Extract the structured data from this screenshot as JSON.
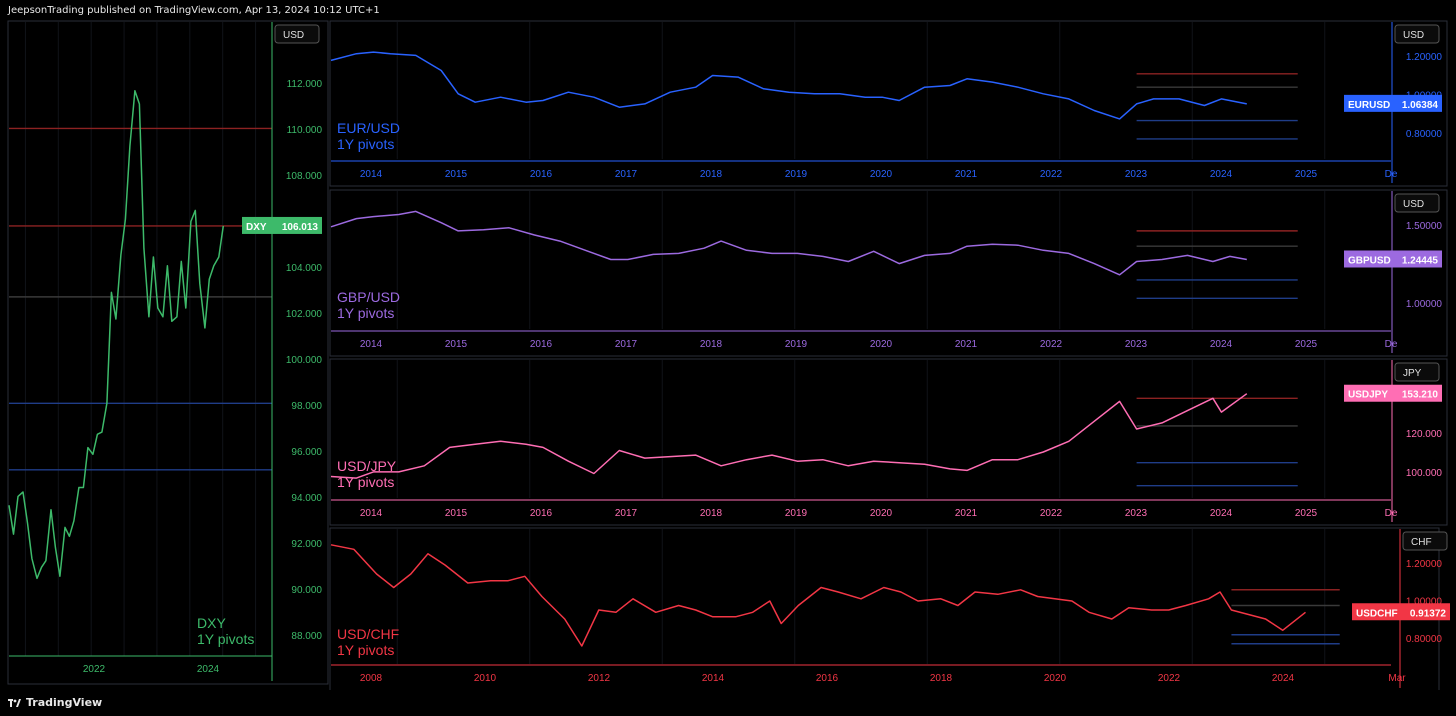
{
  "header": {
    "publisher_line": "JeepsonTrading published on TradingView.com, Apr 13, 2024 10:12 UTC+1"
  },
  "footer": {
    "brand": "TradingView"
  },
  "chart_data": [
    {
      "type": "line",
      "symbol": "DXY",
      "label_lines": [
        "DXY",
        "1Y pivots"
      ],
      "currency": "USD",
      "color": "#3dba6a",
      "last_value_label": "106.013",
      "y_ticks": [
        "112.000",
        "110.000",
        "108.000",
        "106.000",
        "104.000",
        "102.000",
        "100.000",
        "98.000",
        "96.000",
        "94.000",
        "92.000",
        "90.000",
        "88.000"
      ],
      "x_ticks": [
        "2022",
        "2024"
      ],
      "ylim": [
        86.6,
        115.2
      ],
      "xlim": [
        2020.5,
        2025.2
      ],
      "values": [
        [
          2020.5,
          93.4
        ],
        [
          2020.58,
          92.1
        ],
        [
          2020.66,
          93.8
        ],
        [
          2020.75,
          94.0
        ],
        [
          2020.83,
          92.6
        ],
        [
          2020.91,
          91.0
        ],
        [
          2021.0,
          90.1
        ],
        [
          2021.08,
          90.6
        ],
        [
          2021.16,
          90.9
        ],
        [
          2021.25,
          93.2
        ],
        [
          2021.33,
          91.5
        ],
        [
          2021.41,
          90.2
        ],
        [
          2021.5,
          92.4
        ],
        [
          2021.58,
          92.0
        ],
        [
          2021.66,
          92.7
        ],
        [
          2021.75,
          94.2
        ],
        [
          2021.83,
          94.2
        ],
        [
          2021.91,
          96.0
        ],
        [
          2022.0,
          95.7
        ],
        [
          2022.08,
          96.6
        ],
        [
          2022.16,
          96.7
        ],
        [
          2022.25,
          98.0
        ],
        [
          2022.33,
          103.0
        ],
        [
          2022.41,
          101.8
        ],
        [
          2022.5,
          104.7
        ],
        [
          2022.58,
          106.3
        ],
        [
          2022.66,
          109.6
        ],
        [
          2022.75,
          112.1
        ],
        [
          2022.83,
          111.5
        ],
        [
          2022.91,
          105.0
        ],
        [
          2023.0,
          101.9
        ],
        [
          2023.08,
          104.6
        ],
        [
          2023.16,
          102.3
        ],
        [
          2023.25,
          101.9
        ],
        [
          2023.33,
          104.2
        ],
        [
          2023.41,
          101.7
        ],
        [
          2023.5,
          101.9
        ],
        [
          2023.58,
          104.4
        ],
        [
          2023.66,
          102.3
        ],
        [
          2023.75,
          106.2
        ],
        [
          2023.83,
          106.7
        ],
        [
          2023.91,
          103.4
        ],
        [
          2024.0,
          101.4
        ],
        [
          2024.08,
          103.6
        ],
        [
          2024.16,
          104.2
        ],
        [
          2024.25,
          104.6
        ],
        [
          2024.33,
          106.0
        ]
      ],
      "pivot_lines": [
        {
          "y": 110.4,
          "color": "#8c2222"
        },
        {
          "y": 106.0,
          "color": "#8c2222"
        },
        {
          "y": 102.8,
          "color": "#3a3a3a"
        },
        {
          "y": 98.0,
          "color": "#1f3d88"
        },
        {
          "y": 95.0,
          "color": "#1f3d88"
        }
      ]
    },
    {
      "type": "line",
      "symbol": "EURUSD",
      "label_lines": [
        "EUR/USD",
        "1Y pivots"
      ],
      "currency": "USD",
      "color": "#2962ff",
      "last_value_label": "1.06384",
      "y_ticks": [
        "1.20000",
        "1.00000",
        "0.80000"
      ],
      "x_ticks": [
        "2014",
        "2015",
        "2016",
        "2017",
        "2018",
        "2019",
        "2020",
        "2021",
        "2022",
        "2023",
        "2024",
        "2025",
        "De"
      ],
      "xlim": [
        2013.5,
        2026.0
      ],
      "ylim": [
        0.74,
        1.56
      ],
      "values": [
        [
          2013.5,
          1.33
        ],
        [
          2013.8,
          1.37
        ],
        [
          2014.0,
          1.38
        ],
        [
          2014.2,
          1.37
        ],
        [
          2014.5,
          1.36
        ],
        [
          2014.8,
          1.27
        ],
        [
          2015.0,
          1.13
        ],
        [
          2015.2,
          1.08
        ],
        [
          2015.5,
          1.11
        ],
        [
          2015.8,
          1.08
        ],
        [
          2016.0,
          1.09
        ],
        [
          2016.3,
          1.14
        ],
        [
          2016.6,
          1.11
        ],
        [
          2016.9,
          1.05
        ],
        [
          2017.2,
          1.07
        ],
        [
          2017.5,
          1.14
        ],
        [
          2017.8,
          1.17
        ],
        [
          2018.0,
          1.24
        ],
        [
          2018.3,
          1.23
        ],
        [
          2018.6,
          1.16
        ],
        [
          2018.9,
          1.14
        ],
        [
          2019.2,
          1.13
        ],
        [
          2019.5,
          1.13
        ],
        [
          2019.8,
          1.11
        ],
        [
          2020.0,
          1.11
        ],
        [
          2020.2,
          1.09
        ],
        [
          2020.5,
          1.17
        ],
        [
          2020.8,
          1.18
        ],
        [
          2021.0,
          1.22
        ],
        [
          2021.3,
          1.2
        ],
        [
          2021.6,
          1.17
        ],
        [
          2021.9,
          1.13
        ],
        [
          2022.2,
          1.1
        ],
        [
          2022.5,
          1.03
        ],
        [
          2022.8,
          0.98
        ],
        [
          2023.0,
          1.07
        ],
        [
          2023.2,
          1.1
        ],
        [
          2023.5,
          1.1
        ],
        [
          2023.8,
          1.06
        ],
        [
          2024.0,
          1.1
        ],
        [
          2024.3,
          1.07
        ]
      ],
      "pivot_lines": [
        {
          "y": 1.25,
          "color": "#8c2222"
        },
        {
          "y": 1.17,
          "color": "#3a3a3a"
        },
        {
          "y": 0.97,
          "color": "#1f3d88"
        },
        {
          "y": 0.86,
          "color": "#1f3d88"
        }
      ]
    },
    {
      "type": "line",
      "symbol": "GBPUSD",
      "label_lines": [
        "GBP/USD",
        "1Y pivots"
      ],
      "currency": "USD",
      "color": "#9c6ae0",
      "last_value_label": "1.24445",
      "y_ticks": [
        "1.50000",
        "1.00000"
      ],
      "x_ticks": [
        "2014",
        "2015",
        "2016",
        "2017",
        "2018",
        "2019",
        "2020",
        "2021",
        "2022",
        "2023",
        "2024",
        "2025",
        "De"
      ],
      "xlim": [
        2013.5,
        2026.0
      ],
      "ylim": [
        0.56,
        1.91
      ],
      "values": [
        [
          2013.5,
          1.56
        ],
        [
          2013.8,
          1.64
        ],
        [
          2014.0,
          1.66
        ],
        [
          2014.3,
          1.68
        ],
        [
          2014.5,
          1.71
        ],
        [
          2014.8,
          1.6
        ],
        [
          2015.0,
          1.52
        ],
        [
          2015.3,
          1.53
        ],
        [
          2015.6,
          1.55
        ],
        [
          2015.9,
          1.48
        ],
        [
          2016.2,
          1.42
        ],
        [
          2016.5,
          1.33
        ],
        [
          2016.8,
          1.24
        ],
        [
          2017.0,
          1.24
        ],
        [
          2017.3,
          1.29
        ],
        [
          2017.6,
          1.3
        ],
        [
          2017.9,
          1.35
        ],
        [
          2018.1,
          1.42
        ],
        [
          2018.4,
          1.33
        ],
        [
          2018.7,
          1.3
        ],
        [
          2019.0,
          1.3
        ],
        [
          2019.3,
          1.27
        ],
        [
          2019.6,
          1.22
        ],
        [
          2019.9,
          1.32
        ],
        [
          2020.2,
          1.2
        ],
        [
          2020.5,
          1.28
        ],
        [
          2020.8,
          1.3
        ],
        [
          2021.0,
          1.37
        ],
        [
          2021.3,
          1.39
        ],
        [
          2021.6,
          1.38
        ],
        [
          2021.9,
          1.33
        ],
        [
          2022.2,
          1.3
        ],
        [
          2022.5,
          1.2
        ],
        [
          2022.8,
          1.09
        ],
        [
          2023.0,
          1.22
        ],
        [
          2023.3,
          1.24
        ],
        [
          2023.6,
          1.28
        ],
        [
          2023.9,
          1.22
        ],
        [
          2024.1,
          1.27
        ],
        [
          2024.3,
          1.24
        ]
      ],
      "pivot_lines": [
        {
          "y": 1.52,
          "color": "#8c2222"
        },
        {
          "y": 1.37,
          "color": "#3a3a3a"
        },
        {
          "y": 1.04,
          "color": "#1f3d88"
        },
        {
          "y": 0.86,
          "color": "#1f3d88"
        }
      ]
    },
    {
      "type": "line",
      "symbol": "USDJPY",
      "label_lines": [
        "USD/JPY",
        "1Y pivots"
      ],
      "currency": "JPY",
      "color": "#ff6eb4",
      "last_value_label": "153.210",
      "y_ticks": [
        "125.000",
        "120.000",
        "100.000"
      ],
      "x_ticks": [
        "2014",
        "2015",
        "2016",
        "2017",
        "2018",
        "2019",
        "2020",
        "2021",
        "2022",
        "2023",
        "2024",
        "2025",
        "De"
      ],
      "xlim": [
        2013.5,
        2026.0
      ],
      "ylim": [
        85,
        175
      ],
      "values": [
        [
          2013.5,
          99
        ],
        [
          2013.8,
          98
        ],
        [
          2014.0,
          102
        ],
        [
          2014.3,
          102
        ],
        [
          2014.6,
          106
        ],
        [
          2014.9,
          118
        ],
        [
          2015.2,
          120
        ],
        [
          2015.5,
          122
        ],
        [
          2015.8,
          120
        ],
        [
          2016.0,
          118
        ],
        [
          2016.3,
          109
        ],
        [
          2016.6,
          101
        ],
        [
          2016.9,
          116
        ],
        [
          2017.2,
          111
        ],
        [
          2017.5,
          112
        ],
        [
          2017.8,
          113
        ],
        [
          2018.1,
          106
        ],
        [
          2018.4,
          110
        ],
        [
          2018.7,
          113
        ],
        [
          2019.0,
          109
        ],
        [
          2019.3,
          110
        ],
        [
          2019.6,
          106
        ],
        [
          2019.9,
          109
        ],
        [
          2020.2,
          108
        ],
        [
          2020.5,
          107
        ],
        [
          2020.8,
          104
        ],
        [
          2021.0,
          103
        ],
        [
          2021.3,
          110
        ],
        [
          2021.6,
          110
        ],
        [
          2021.9,
          115
        ],
        [
          2022.2,
          122
        ],
        [
          2022.5,
          135
        ],
        [
          2022.8,
          148
        ],
        [
          2023.0,
          130
        ],
        [
          2023.3,
          134
        ],
        [
          2023.6,
          142
        ],
        [
          2023.9,
          150
        ],
        [
          2024.0,
          141
        ],
        [
          2024.3,
          153
        ]
      ],
      "pivot_lines": [
        {
          "y": 150,
          "color": "#8c2222"
        },
        {
          "y": 132,
          "color": "#3a3a3a"
        },
        {
          "y": 108,
          "color": "#1f3d88"
        },
        {
          "y": 93,
          "color": "#1f3d88"
        }
      ]
    },
    {
      "type": "line",
      "symbol": "USDCHF",
      "label_lines": [
        "USD/CHF",
        "1Y pivots"
      ],
      "currency": "CHF",
      "color": "#f23645",
      "last_value_label": "0.91372",
      "y_ticks": [
        "1.20000",
        "1.00000",
        "0.80000"
      ],
      "x_ticks": [
        "2008",
        "2010",
        "2012",
        "2014",
        "2016",
        "2018",
        "2020",
        "2022",
        "2024",
        "Mar"
      ],
      "xlim": [
        2007.2,
        2025.8
      ],
      "ylim": [
        0.68,
        1.28
      ],
      "values": [
        [
          2007.2,
          1.21
        ],
        [
          2007.6,
          1.19
        ],
        [
          2008.0,
          1.08
        ],
        [
          2008.3,
          1.02
        ],
        [
          2008.6,
          1.08
        ],
        [
          2008.9,
          1.17
        ],
        [
          2009.2,
          1.12
        ],
        [
          2009.6,
          1.04
        ],
        [
          2010.0,
          1.05
        ],
        [
          2010.3,
          1.05
        ],
        [
          2010.6,
          1.07
        ],
        [
          2010.9,
          0.98
        ],
        [
          2011.3,
          0.88
        ],
        [
          2011.6,
          0.76
        ],
        [
          2011.9,
          0.92
        ],
        [
          2012.2,
          0.91
        ],
        [
          2012.5,
          0.97
        ],
        [
          2012.9,
          0.91
        ],
        [
          2013.3,
          0.94
        ],
        [
          2013.6,
          0.92
        ],
        [
          2013.9,
          0.89
        ],
        [
          2014.3,
          0.89
        ],
        [
          2014.6,
          0.91
        ],
        [
          2014.9,
          0.96
        ],
        [
          2015.1,
          0.86
        ],
        [
          2015.4,
          0.94
        ],
        [
          2015.8,
          1.02
        ],
        [
          2016.1,
          1.0
        ],
        [
          2016.5,
          0.97
        ],
        [
          2016.9,
          1.02
        ],
        [
          2017.2,
          1.0
        ],
        [
          2017.5,
          0.96
        ],
        [
          2017.9,
          0.97
        ],
        [
          2018.2,
          0.94
        ],
        [
          2018.5,
          1.0
        ],
        [
          2018.9,
          0.99
        ],
        [
          2019.3,
          1.01
        ],
        [
          2019.6,
          0.98
        ],
        [
          2019.9,
          0.97
        ],
        [
          2020.2,
          0.96
        ],
        [
          2020.5,
          0.91
        ],
        [
          2020.9,
          0.88
        ],
        [
          2021.2,
          0.93
        ],
        [
          2021.6,
          0.92
        ],
        [
          2021.9,
          0.92
        ],
        [
          2022.2,
          0.94
        ],
        [
          2022.6,
          0.97
        ],
        [
          2022.8,
          1.0
        ],
        [
          2023.0,
          0.92
        ],
        [
          2023.3,
          0.9
        ],
        [
          2023.6,
          0.88
        ],
        [
          2023.9,
          0.83
        ],
        [
          2024.1,
          0.87
        ],
        [
          2024.3,
          0.91
        ]
      ],
      "pivot_lines": [
        {
          "y": 1.01,
          "color": "#8c2222"
        },
        {
          "y": 0.94,
          "color": "#3a3a3a"
        },
        {
          "y": 0.81,
          "color": "#1f3d88"
        },
        {
          "y": 0.77,
          "color": "#1f3d88"
        }
      ]
    }
  ]
}
